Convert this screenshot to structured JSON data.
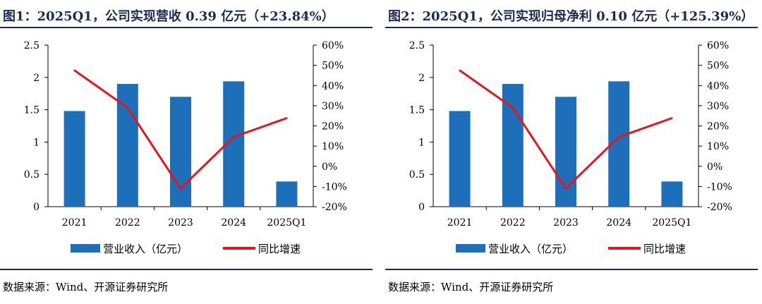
{
  "panels": [
    {
      "title": "图1：2025Q1，公司实现营收 0.39 亿元（+23.84%）",
      "source": "数据来源：Wind、开源证券研究所",
      "chart_data": {
        "type": "bar+line",
        "categories": [
          "2021",
          "2022",
          "2023",
          "2024",
          "2025Q1"
        ],
        "series": [
          {
            "name": "营业收入（亿元）",
            "type": "bar",
            "axis": "left",
            "values": [
              1.48,
              1.9,
              1.7,
              1.94,
              0.39
            ],
            "color": "#1d6fba"
          },
          {
            "name": "同比增速",
            "type": "line",
            "axis": "right",
            "values": [
              47.5,
              29.0,
              -11.0,
              14.5,
              23.84
            ],
            "color": "#e8141c"
          }
        ],
        "left_axis": {
          "ticks": [
            "0",
            "0.5",
            "1",
            "1.5",
            "2",
            "2.5"
          ],
          "ylim": [
            0,
            2.5
          ]
        },
        "right_axis": {
          "ticks": [
            "-20%",
            "-10%",
            "0%",
            "10%",
            "20%",
            "30%",
            "40%",
            "50%",
            "60%"
          ],
          "ylim": [
            -20,
            60
          ]
        },
        "legend_position": "bottom"
      }
    },
    {
      "title": "图2：2025Q1，公司实现归母净利 0.10 亿元（+125.39%）",
      "source": "数据来源：Wind、开源证券研究所",
      "chart_data": {
        "type": "bar+line",
        "categories": [
          "2021",
          "2022",
          "2023",
          "2024",
          "2025Q1"
        ],
        "series": [
          {
            "name": "营业收入（亿元）",
            "type": "bar",
            "axis": "left",
            "values": [
              1.48,
              1.9,
              1.7,
              1.94,
              0.39
            ],
            "color": "#1d6fba"
          },
          {
            "name": "同比增速",
            "type": "line",
            "axis": "right",
            "values": [
              47.5,
              29.0,
              -11.0,
              14.5,
              23.84
            ],
            "color": "#e8141c"
          }
        ],
        "left_axis": {
          "ticks": [
            "0",
            "0.5",
            "1",
            "1.5",
            "2",
            "2.5"
          ],
          "ylim": [
            0,
            2.5
          ]
        },
        "right_axis": {
          "ticks": [
            "-20%",
            "-10%",
            "0%",
            "10%",
            "20%",
            "30%",
            "40%",
            "50%",
            "60%"
          ],
          "ylim": [
            -20,
            60
          ]
        },
        "legend_position": "bottom"
      }
    }
  ]
}
